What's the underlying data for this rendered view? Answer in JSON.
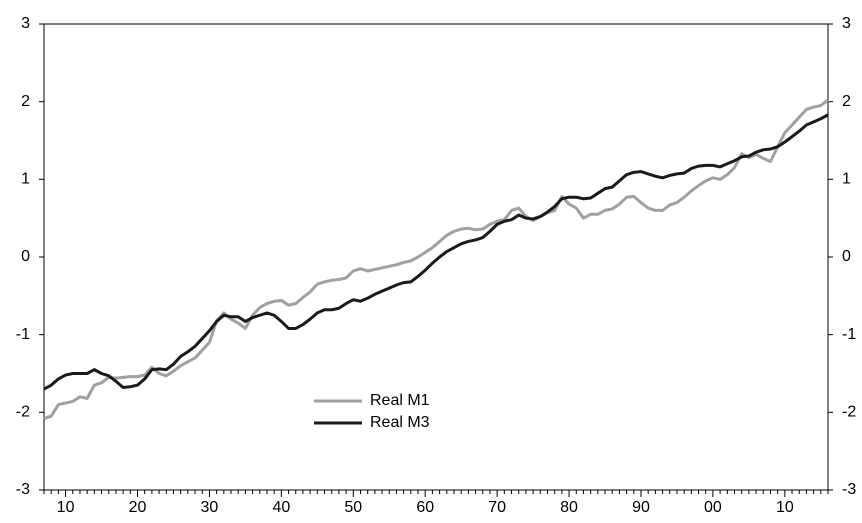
{
  "chart_data": {
    "type": "line",
    "categories": [
      null,
      null,
      null,
      "10",
      null,
      null,
      null,
      null,
      null,
      null,
      null,
      null,
      null,
      "20",
      null,
      null,
      null,
      null,
      null,
      null,
      null,
      null,
      null,
      "30",
      null,
      null,
      null,
      null,
      null,
      null,
      null,
      null,
      null,
      "40",
      null,
      null,
      null,
      null,
      null,
      null,
      null,
      null,
      null,
      "50",
      null,
      null,
      null,
      null,
      null,
      null,
      null,
      null,
      null,
      "60",
      null,
      null,
      null,
      null,
      null,
      null,
      null,
      null,
      null,
      "70",
      null,
      null,
      null,
      null,
      null,
      null,
      null,
      null,
      null,
      "80",
      null,
      null,
      null,
      null,
      null,
      null,
      null,
      null,
      null,
      "90",
      null,
      null,
      null,
      null,
      null,
      null,
      null,
      null,
      null,
      "00",
      null,
      null,
      null,
      null,
      null,
      null,
      null,
      null,
      null,
      "10",
      null,
      null,
      null,
      null,
      null,
      null
    ],
    "series": [
      {
        "name": "Real M1",
        "color": "#a0a0a0",
        "values": [
          -2.08,
          -2.05,
          -1.9,
          -1.88,
          -1.86,
          -1.8,
          -1.82,
          -1.65,
          -1.62,
          -1.55,
          -1.56,
          -1.55,
          -1.54,
          -1.54,
          -1.52,
          -1.42,
          -1.5,
          -1.53,
          -1.47,
          -1.4,
          -1.35,
          -1.3,
          -1.2,
          -1.1,
          -0.82,
          -0.72,
          -0.8,
          -0.85,
          -0.92,
          -0.75,
          -0.65,
          -0.6,
          -0.57,
          -0.56,
          -0.62,
          -0.6,
          -0.52,
          -0.45,
          -0.35,
          -0.32,
          -0.3,
          -0.29,
          -0.27,
          -0.18,
          -0.15,
          -0.18,
          -0.16,
          -0.14,
          -0.12,
          -0.1,
          -0.07,
          -0.05,
          0.0,
          0.06,
          0.12,
          0.2,
          0.28,
          0.33,
          0.36,
          0.37,
          0.35,
          0.36,
          0.42,
          0.46,
          0.48,
          0.6,
          0.63,
          0.52,
          0.47,
          0.52,
          0.57,
          0.6,
          0.78,
          0.68,
          0.63,
          0.5,
          0.55,
          0.55,
          0.6,
          0.62,
          0.68,
          0.77,
          0.78,
          0.7,
          0.63,
          0.6,
          0.6,
          0.67,
          0.7,
          0.77,
          0.85,
          0.92,
          0.98,
          1.02,
          1.0,
          1.06,
          1.15,
          1.33,
          1.28,
          1.32,
          1.27,
          1.23,
          1.42,
          1.6,
          1.7,
          1.8,
          1.9,
          1.93,
          1.95,
          2.02
        ]
      },
      {
        "name": "Real M3",
        "color": "#1a1a1a",
        "values": [
          -1.7,
          -1.65,
          -1.57,
          -1.52,
          -1.5,
          -1.5,
          -1.5,
          -1.45,
          -1.5,
          -1.53,
          -1.6,
          -1.68,
          -1.67,
          -1.65,
          -1.57,
          -1.45,
          -1.44,
          -1.45,
          -1.38,
          -1.28,
          -1.22,
          -1.15,
          -1.05,
          -0.95,
          -0.83,
          -0.75,
          -0.77,
          -0.77,
          -0.83,
          -0.78,
          -0.75,
          -0.72,
          -0.75,
          -0.83,
          -0.92,
          -0.92,
          -0.87,
          -0.8,
          -0.72,
          -0.68,
          -0.68,
          -0.66,
          -0.6,
          -0.55,
          -0.57,
          -0.53,
          -0.48,
          -0.44,
          -0.4,
          -0.36,
          -0.33,
          -0.32,
          -0.25,
          -0.17,
          -0.08,
          0.0,
          0.07,
          0.12,
          0.17,
          0.2,
          0.22,
          0.25,
          0.33,
          0.42,
          0.46,
          0.48,
          0.54,
          0.5,
          0.49,
          0.52,
          0.58,
          0.65,
          0.75,
          0.77,
          0.77,
          0.75,
          0.76,
          0.82,
          0.88,
          0.9,
          0.98,
          1.06,
          1.09,
          1.1,
          1.07,
          1.04,
          1.02,
          1.05,
          1.07,
          1.08,
          1.14,
          1.17,
          1.18,
          1.18,
          1.16,
          1.2,
          1.24,
          1.29,
          1.3,
          1.35,
          1.38,
          1.39,
          1.42,
          1.48,
          1.55,
          1.62,
          1.7,
          1.74,
          1.78,
          1.83
        ]
      }
    ],
    "ylim": [
      -3,
      3
    ],
    "yticks": [
      -3,
      -2,
      -1,
      0,
      1,
      2,
      3
    ],
    "grid": true,
    "legend": "bottom"
  }
}
